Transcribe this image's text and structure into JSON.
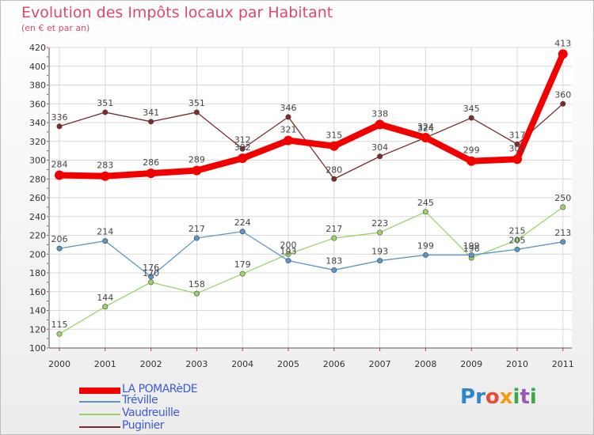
{
  "header": {
    "title": "Evolution des Impôts locaux par Habitant",
    "subtitle": "(en € et par an)"
  },
  "logo": {
    "text": "Proxiti"
  },
  "chart_data": {
    "type": "line",
    "title": "Evolution des Impôts locaux par Habitant",
    "subtitle": "(en € et par an)",
    "x": [
      "2000",
      "2001",
      "2002",
      "2003",
      "2004",
      "2005",
      "2006",
      "2007",
      "2008",
      "2009",
      "2010",
      "2011"
    ],
    "ylim": [
      100,
      420
    ],
    "yticks": [
      100,
      120,
      140,
      160,
      180,
      200,
      220,
      240,
      260,
      280,
      300,
      320,
      340,
      360,
      380,
      400,
      420
    ],
    "grid": true,
    "legend_position": "bottom-left",
    "series": [
      {
        "name": "Puginier",
        "color": "#7b2c2c",
        "values": [
          336,
          351,
          341,
          351,
          312,
          346,
          280,
          304,
          324,
          345,
          317,
          360
        ]
      },
      {
        "name": "Vaudreuille",
        "color": "#9bd36a",
        "values": [
          115,
          144,
          170,
          158,
          179,
          200,
          217,
          223,
          245,
          196,
          215,
          250
        ]
      },
      {
        "name": "Tréville",
        "color": "#5a96c8",
        "values": [
          206,
          214,
          176,
          217,
          224,
          193,
          183,
          193,
          199,
          199,
          205,
          213
        ]
      },
      {
        "name": "LA POMARèDE",
        "color": "#f20000",
        "values": [
          284,
          283,
          286,
          289,
          302,
          321,
          315,
          338,
          324,
          299,
          301,
          413
        ]
      }
    ]
  }
}
